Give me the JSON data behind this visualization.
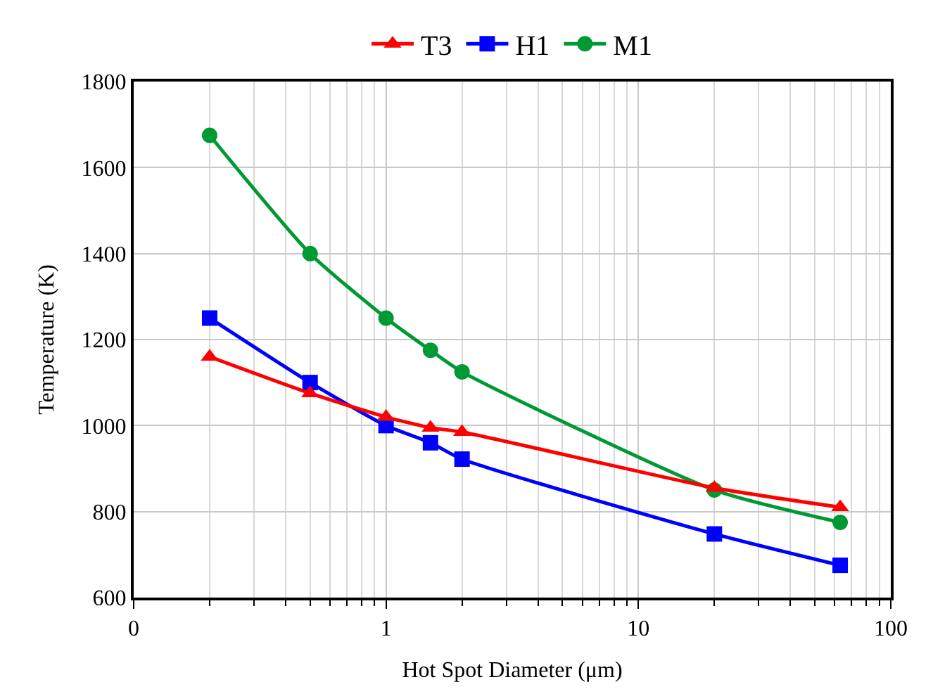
{
  "chart_data": {
    "type": "line",
    "xlabel": "Hot Spot Diameter (μm)",
    "ylabel": "Temperature (K)",
    "x": [
      0.2,
      0.5,
      1,
      1.5,
      2,
      20,
      63
    ],
    "series": [
      {
        "name": "T3",
        "color": "#ff0000",
        "marker": "triangle",
        "values": [
          1160,
          1075,
          1020,
          995,
          985,
          855,
          810
        ]
      },
      {
        "name": "H1",
        "color": "#0000ff",
        "marker": "square",
        "values": [
          1250,
          1100,
          1000,
          960,
          922,
          748,
          675
        ]
      },
      {
        "name": "M1",
        "color": "#009933",
        "marker": "circle",
        "values": [
          1675,
          1400,
          1250,
          1175,
          1125,
          850,
          775
        ]
      }
    ],
    "log": "x",
    "xlim": [
      0.1,
      100
    ],
    "xticks": [
      {
        "value": 0.1,
        "label": "0"
      },
      1,
      10,
      100
    ],
    "ylim": [
      600,
      1800
    ],
    "yticks": [
      600,
      800,
      1000,
      1200,
      1400,
      1600,
      1800
    ],
    "grid": true,
    "legend": "top"
  }
}
